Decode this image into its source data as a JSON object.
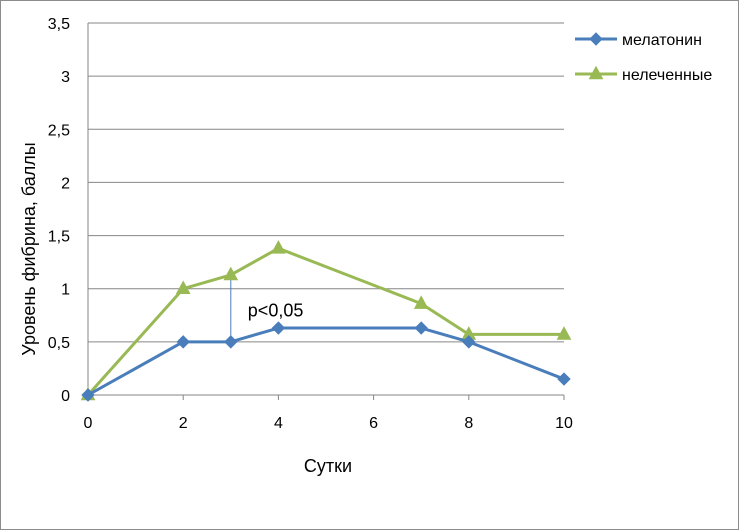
{
  "chart_data": {
    "type": "line",
    "title": "",
    "xlabel": "Сутки",
    "ylabel": "Уровень фибрина, баллы",
    "xlim": [
      0,
      10
    ],
    "ylim": [
      0,
      3.5
    ],
    "x_ticks": [
      0,
      2,
      4,
      6,
      8,
      10
    ],
    "x_tick_labels": [
      "0",
      "2",
      "4",
      "6",
      "8",
      "10"
    ],
    "y_ticks": [
      0,
      0.5,
      1,
      1.5,
      2,
      2.5,
      3,
      3.5
    ],
    "y_tick_labels": [
      "0",
      "0,5",
      "1",
      "1,5",
      "2",
      "2,5",
      "3",
      "3,5"
    ],
    "grid": "horizontal",
    "legend_position": "top-right",
    "series": [
      {
        "name": "мелатонин",
        "color": "#4a7ebb",
        "marker": "diamond",
        "x": [
          0,
          2,
          3,
          4,
          7,
          8,
          10
        ],
        "y": [
          0,
          0.5,
          0.5,
          0.63,
          0.63,
          0.5,
          0.15
        ]
      },
      {
        "name": "нелеченные",
        "color": "#98b954",
        "marker": "triangle",
        "x": [
          0,
          2,
          3,
          4,
          7,
          8,
          10
        ],
        "y": [
          0,
          1.0,
          1.13,
          1.38,
          0.86,
          0.57,
          0.57
        ]
      }
    ],
    "annotations": [
      {
        "text": "p<0,05",
        "x": 3,
        "y_from": 0.5,
        "y_to": 1.13
      }
    ]
  }
}
